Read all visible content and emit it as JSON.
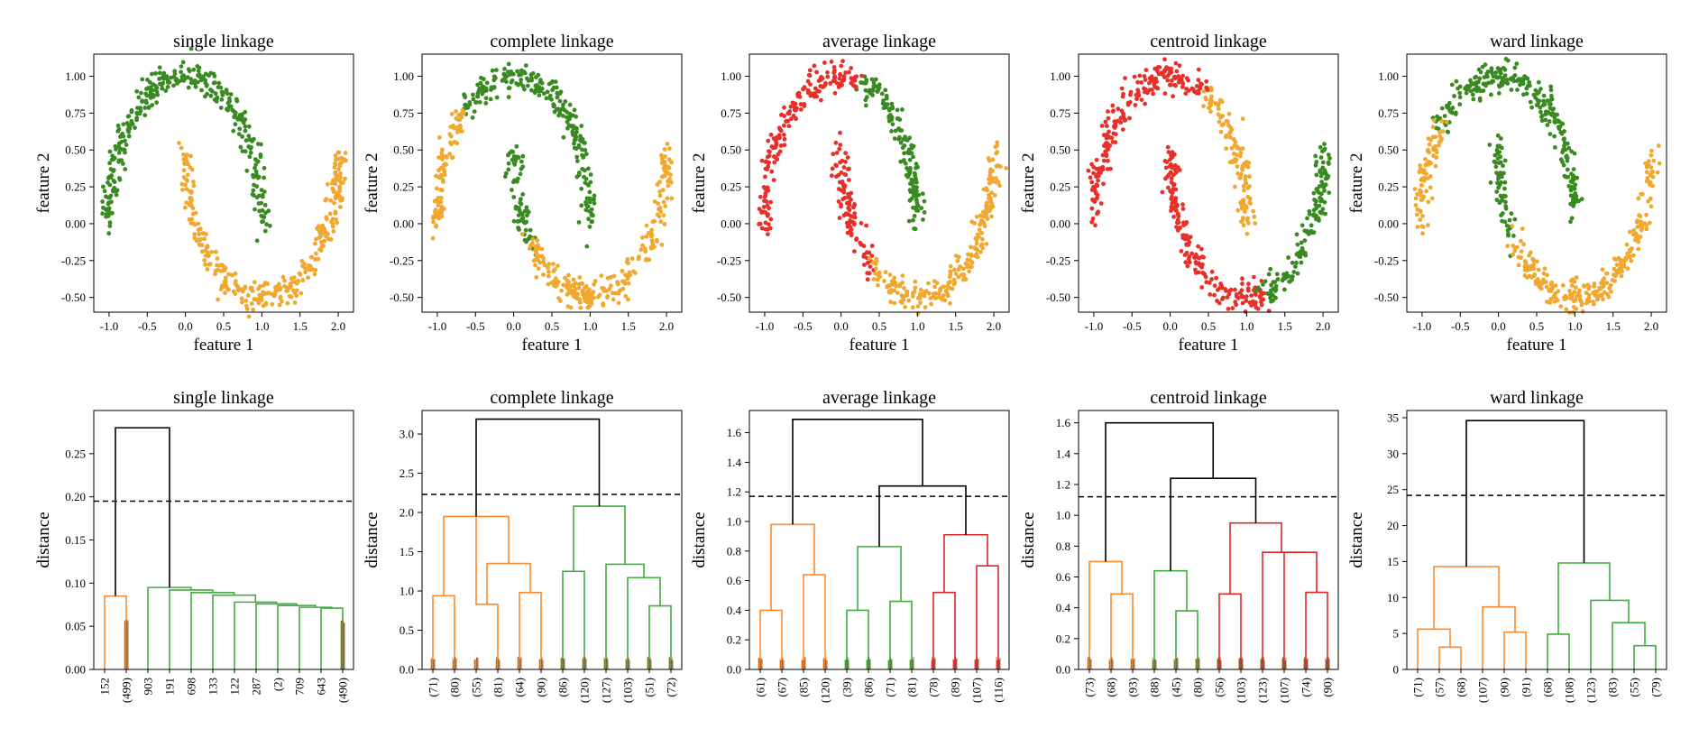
{
  "colors": {
    "green": "#3a8a22",
    "orange": "#f0a830",
    "red": "#e8302a",
    "c1": "#ff8a2e",
    "c2": "#3fae3f",
    "c3": "#d8282a",
    "black": "#000000"
  },
  "chart_data": [
    {
      "type": "scatter",
      "title": "single linkage",
      "xlabel": "feature 1",
      "ylabel": "feature 2",
      "xlim": [
        -1.2,
        2.2
      ],
      "ylim": [
        -0.6,
        1.15
      ],
      "xticks": [
        "-1.0",
        "-0.5",
        "0.0",
        "0.5",
        "1.0",
        "1.5",
        "2.0"
      ],
      "yticks": [
        "-0.50",
        "-0.25",
        "0.00",
        "0.25",
        "0.50",
        "0.75",
        "1.00"
      ],
      "clusters": [
        {
          "moon": "upper",
          "from": 0,
          "to": 1,
          "color": "green"
        },
        {
          "moon": "lower",
          "from": 0,
          "to": 1,
          "color": "orange"
        }
      ]
    },
    {
      "type": "scatter",
      "title": "complete linkage",
      "xlabel": "feature 1",
      "ylabel": "feature 2",
      "xlim": [
        -1.2,
        2.2
      ],
      "ylim": [
        -0.6,
        1.15
      ],
      "xticks": [
        "-1.0",
        "-0.5",
        "0.0",
        "0.5",
        "1.0",
        "1.5",
        "2.0"
      ],
      "yticks": [
        "-0.50",
        "-0.25",
        "0.00",
        "0.25",
        "0.50",
        "0.75",
        "1.00"
      ],
      "clusters": [
        {
          "moon": "upper",
          "from": 0,
          "to": 0.72,
          "color": "green"
        },
        {
          "moon": "upper",
          "from": 0.72,
          "to": 1,
          "color": "orange"
        },
        {
          "moon": "lower",
          "from": 0,
          "to": 0.22,
          "color": "green"
        },
        {
          "moon": "lower",
          "from": 0.22,
          "to": 1,
          "color": "orange"
        }
      ]
    },
    {
      "type": "scatter",
      "title": "average linkage",
      "xlabel": "feature 1",
      "ylabel": "feature 2",
      "xlim": [
        -1.2,
        2.2
      ],
      "ylim": [
        -0.6,
        1.15
      ],
      "xticks": [
        "-1.0",
        "-0.5",
        "0.0",
        "0.5",
        "1.0",
        "1.5",
        "2.0"
      ],
      "yticks": [
        "-0.50",
        "-0.25",
        "0.00",
        "0.25",
        "0.50",
        "0.75",
        "1.00"
      ],
      "clusters": [
        {
          "moon": "upper",
          "from": 0,
          "to": 0.43,
          "color": "green"
        },
        {
          "moon": "upper",
          "from": 0.43,
          "to": 1,
          "color": "red"
        },
        {
          "moon": "lower",
          "from": 0,
          "to": 0.3,
          "color": "red"
        },
        {
          "moon": "lower",
          "from": 0.3,
          "to": 1,
          "color": "orange"
        }
      ]
    },
    {
      "type": "scatter",
      "title": "centroid linkage",
      "xlabel": "feature 1",
      "ylabel": "feature 2",
      "xlim": [
        -1.2,
        2.2
      ],
      "ylim": [
        -0.6,
        1.15
      ],
      "xticks": [
        "-1.0",
        "-0.5",
        "0.0",
        "0.5",
        "1.0",
        "1.5",
        "2.0"
      ],
      "yticks": [
        "-0.50",
        "-0.25",
        "0.00",
        "0.25",
        "0.50",
        "0.75",
        "1.00"
      ],
      "clusters": [
        {
          "moon": "upper",
          "from": 0,
          "to": 0.35,
          "color": "orange"
        },
        {
          "moon": "upper",
          "from": 0.35,
          "to": 1,
          "color": "red"
        },
        {
          "moon": "lower",
          "from": 0,
          "to": 0.58,
          "color": "red"
        },
        {
          "moon": "lower",
          "from": 0.58,
          "to": 1,
          "color": "green"
        }
      ]
    },
    {
      "type": "scatter",
      "title": "ward linkage",
      "xlabel": "feature 1",
      "ylabel": "feature 2",
      "xlim": [
        -1.2,
        2.2
      ],
      "ylim": [
        -0.6,
        1.15
      ],
      "xticks": [
        "-1.0",
        "-0.5",
        "0.0",
        "0.5",
        "1.0",
        "1.5",
        "2.0"
      ],
      "yticks": [
        "-0.50",
        "-0.25",
        "0.00",
        "0.25",
        "0.50",
        "0.75",
        "1.00"
      ],
      "clusters": [
        {
          "moon": "upper",
          "from": 0,
          "to": 0.77,
          "color": "green"
        },
        {
          "moon": "upper",
          "from": 0.77,
          "to": 1,
          "color": "orange"
        },
        {
          "moon": "lower",
          "from": 0,
          "to": 0.2,
          "color": "green"
        },
        {
          "moon": "lower",
          "from": 0.2,
          "to": 1,
          "color": "orange"
        }
      ]
    },
    {
      "type": "dendrogram",
      "title": "single linkage",
      "ylabel": "distance",
      "ylim": [
        0,
        0.3
      ],
      "yticks": [
        0,
        0.05,
        0.1,
        0.15,
        0.2,
        0.25
      ],
      "ytick_labels": [
        "0.00",
        "0.05",
        "0.10",
        "0.15",
        "0.20",
        "0.25"
      ],
      "cutoff": 0.195,
      "leaves": [
        "152",
        "(499)",
        "903",
        "191",
        "698",
        "133",
        "122",
        "287",
        "(2)",
        "709",
        "643",
        "(490)"
      ],
      "dense_leaves": [
        1,
        11
      ],
      "links": [
        {
          "a": 0,
          "b": 1,
          "h": 0.085,
          "c": "c1"
        },
        {
          "a": 10,
          "b": 11,
          "h": 0.071,
          "c": "c2"
        },
        {
          "a": 9,
          "b": 10.5,
          "h": 0.072,
          "c": "c2"
        },
        {
          "a": 8,
          "b": 9.75,
          "h": 0.074,
          "c": "c2"
        },
        {
          "a": 7,
          "b": 8.875,
          "h": 0.076,
          "c": "c2"
        },
        {
          "a": 6,
          "b": 7.9375,
          "h": 0.078,
          "c": "c2"
        },
        {
          "a": 5,
          "b": 6.96875,
          "h": 0.086,
          "c": "c2"
        },
        {
          "a": 4,
          "b": 5.984375,
          "h": 0.089,
          "c": "c2"
        },
        {
          "a": 3,
          "b": 4.9921875,
          "h": 0.092,
          "c": "c2"
        },
        {
          "a": 2,
          "b": 3.99609375,
          "h": 0.095,
          "c": "c2"
        },
        {
          "a": 0.5,
          "b": 2.998046875,
          "h": 0.28,
          "c": "black"
        }
      ]
    },
    {
      "type": "dendrogram",
      "title": "complete linkage",
      "ylabel": "distance",
      "ylim": [
        0,
        3.3
      ],
      "yticks": [
        0,
        0.5,
        1.0,
        1.5,
        2.0,
        2.5,
        3.0
      ],
      "ytick_labels": [
        "0.0",
        "0.5",
        "1.0",
        "1.5",
        "2.0",
        "2.5",
        "3.0"
      ],
      "cutoff": 2.23,
      "leaves": [
        "(71)",
        "(80)",
        "(55)",
        "(81)",
        "(64)",
        "(90)",
        "(86)",
        "(120)",
        "(127)",
        "(103)",
        "(51)",
        "(72)"
      ],
      "dense_leaves": [
        0,
        1,
        2,
        3,
        4,
        5,
        6,
        7,
        8,
        9,
        10,
        11
      ],
      "links": [
        {
          "a": 0,
          "b": 1,
          "h": 0.94,
          "c": "c1"
        },
        {
          "a": 2,
          "b": 3,
          "h": 0.83,
          "c": "c1"
        },
        {
          "a": 4,
          "b": 5,
          "h": 0.98,
          "c": "c1"
        },
        {
          "a": 2.5,
          "b": 4.5,
          "h": 1.35,
          "c": "c1"
        },
        {
          "a": 0.5,
          "b": 3.5,
          "h": 1.95,
          "c": "c1"
        },
        {
          "a": 6,
          "b": 7,
          "h": 1.25,
          "c": "c2"
        },
        {
          "a": 10,
          "b": 11,
          "h": 0.81,
          "c": "c2"
        },
        {
          "a": 9,
          "b": 10.5,
          "h": 1.17,
          "c": "c2"
        },
        {
          "a": 8,
          "b": 9.75,
          "h": 1.34,
          "c": "c2"
        },
        {
          "a": 6.5,
          "b": 8.875,
          "h": 2.08,
          "c": "c2"
        },
        {
          "a": 2,
          "b": 7.6875,
          "h": 3.19,
          "c": "black"
        }
      ]
    },
    {
      "type": "dendrogram",
      "title": "average linkage",
      "ylabel": "distance",
      "ylim": [
        0,
        1.75
      ],
      "yticks": [
        0,
        0.2,
        0.4,
        0.6,
        0.8,
        1.0,
        1.2,
        1.4,
        1.6
      ],
      "ytick_labels": [
        "0.0",
        "0.2",
        "0.4",
        "0.6",
        "0.8",
        "1.0",
        "1.2",
        "1.4",
        "1.6"
      ],
      "cutoff": 1.17,
      "leaves": [
        "(61)",
        "(67)",
        "(85)",
        "(120)",
        "(39)",
        "(86)",
        "(71)",
        "(81)",
        "(78)",
        "(89)",
        "(107)",
        "(116)"
      ],
      "dense_leaves": [
        0,
        1,
        2,
        3,
        4,
        5,
        6,
        7,
        8,
        9,
        10,
        11
      ],
      "links": [
        {
          "a": 0,
          "b": 1,
          "h": 0.4,
          "c": "c1"
        },
        {
          "a": 2,
          "b": 3,
          "h": 0.64,
          "c": "c1"
        },
        {
          "a": 0.5,
          "b": 2.5,
          "h": 0.98,
          "c": "c1"
        },
        {
          "a": 4,
          "b": 5,
          "h": 0.4,
          "c": "c2"
        },
        {
          "a": 6,
          "b": 7,
          "h": 0.46,
          "c": "c2"
        },
        {
          "a": 4.5,
          "b": 6.5,
          "h": 0.83,
          "c": "c2"
        },
        {
          "a": 8,
          "b": 9,
          "h": 0.52,
          "c": "c3"
        },
        {
          "a": 10,
          "b": 11,
          "h": 0.7,
          "c": "c3"
        },
        {
          "a": 8.5,
          "b": 10.5,
          "h": 0.91,
          "c": "c3"
        },
        {
          "a": 5.5,
          "b": 9.5,
          "h": 1.24,
          "c": "black"
        },
        {
          "a": 1.5,
          "b": 7.5,
          "h": 1.69,
          "c": "black"
        }
      ]
    },
    {
      "type": "dendrogram",
      "title": "centroid linkage",
      "ylabel": "distance",
      "ylim": [
        0,
        1.68
      ],
      "yticks": [
        0,
        0.2,
        0.4,
        0.6,
        0.8,
        1.0,
        1.2,
        1.4,
        1.6
      ],
      "ytick_labels": [
        "0.0",
        "0.2",
        "0.4",
        "0.6",
        "0.8",
        "1.0",
        "1.2",
        "1.4",
        "1.6"
      ],
      "cutoff": 1.12,
      "leaves": [
        "(73)",
        "(68)",
        "(93)",
        "(88)",
        "(45)",
        "(80)",
        "(56)",
        "(103)",
        "(123)",
        "(107)",
        "(74)",
        "(90)"
      ],
      "dense_leaves": [
        0,
        1,
        2,
        3,
        4,
        5,
        6,
        7,
        8,
        9,
        10,
        11
      ],
      "links": [
        {
          "a": 1,
          "b": 2,
          "h": 0.49,
          "c": "c1"
        },
        {
          "a": 0,
          "b": 1.5,
          "h": 0.7,
          "c": "c1"
        },
        {
          "a": 4,
          "b": 5,
          "h": 0.38,
          "c": "c2"
        },
        {
          "a": 3,
          "b": 4.5,
          "h": 0.64,
          "c": "c2"
        },
        {
          "a": 6,
          "b": 7,
          "h": 0.49,
          "c": "c3"
        },
        {
          "a": 10,
          "b": 11,
          "h": 0.5,
          "c": "c3"
        },
        {
          "a": 9,
          "b": 10.5,
          "h": 0.76,
          "c": "c3"
        },
        {
          "a": 8,
          "b": 9.75,
          "h": 0.76,
          "c": "c3"
        },
        {
          "a": 6.5,
          "b": 8.875,
          "h": 0.95,
          "c": "c3"
        },
        {
          "a": 3.75,
          "b": 7.6875,
          "h": 1.24,
          "c": "black"
        },
        {
          "a": 0.75,
          "b": 5.71875,
          "h": 1.6,
          "c": "black"
        }
      ]
    },
    {
      "type": "dendrogram",
      "title": "ward linkage",
      "ylabel": "distance",
      "ylim": [
        0,
        36
      ],
      "yticks": [
        0,
        5,
        10,
        15,
        20,
        25,
        30,
        35
      ],
      "ytick_labels": [
        "0",
        "5",
        "10",
        "15",
        "20",
        "25",
        "30",
        "35"
      ],
      "cutoff": 24.2,
      "leaves": [
        "(71)",
        "(57)",
        "(68)",
        "(107)",
        "(90)",
        "(91)",
        "(68)",
        "(108)",
        "(123)",
        "(83)",
        "(55)",
        "(79)"
      ],
      "dense_leaves": [],
      "links": [
        {
          "a": 1,
          "b": 2,
          "h": 3.1,
          "c": "c1"
        },
        {
          "a": 0,
          "b": 1.5,
          "h": 5.6,
          "c": "c1"
        },
        {
          "a": 4,
          "b": 5,
          "h": 5.2,
          "c": "c1"
        },
        {
          "a": 3,
          "b": 4.5,
          "h": 8.7,
          "c": "c1"
        },
        {
          "a": 0.75,
          "b": 3.75,
          "h": 14.3,
          "c": "c1"
        },
        {
          "a": 6,
          "b": 7,
          "h": 4.9,
          "c": "c2"
        },
        {
          "a": 10,
          "b": 11,
          "h": 3.3,
          "c": "c2"
        },
        {
          "a": 9,
          "b": 10.5,
          "h": 6.5,
          "c": "c2"
        },
        {
          "a": 8,
          "b": 9.75,
          "h": 9.6,
          "c": "c2"
        },
        {
          "a": 6.5,
          "b": 8.875,
          "h": 14.8,
          "c": "c2"
        },
        {
          "a": 2.25,
          "b": 7.6875,
          "h": 34.6,
          "c": "black"
        }
      ]
    }
  ]
}
